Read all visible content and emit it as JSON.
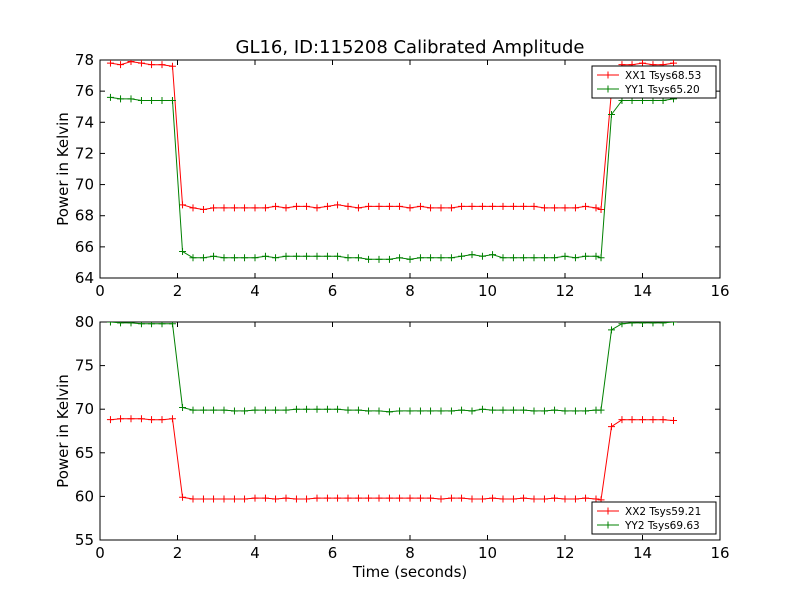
{
  "title": "GL16, ID:115208 Calibrated Amplitude",
  "colors": {
    "red": "#ff0000",
    "green": "#008000"
  },
  "chart_data": [
    {
      "type": "line",
      "xlabel": "",
      "ylabel": "Power in Kelvin",
      "xlim": [
        0,
        16
      ],
      "ylim": [
        64,
        78
      ],
      "xticks": [
        "0",
        "2",
        "4",
        "6",
        "8",
        "10",
        "12",
        "14",
        "16"
      ],
      "yticks": [
        "64",
        "66",
        "68",
        "70",
        "72",
        "74",
        "76",
        "78"
      ],
      "grid": false,
      "legend_position": "top-right",
      "x": [
        0.27,
        0.53,
        0.8,
        1.07,
        1.33,
        1.6,
        1.87,
        2.13,
        2.4,
        2.67,
        2.93,
        3.2,
        3.47,
        3.73,
        4.0,
        4.27,
        4.53,
        4.8,
        5.07,
        5.33,
        5.6,
        5.87,
        6.13,
        6.4,
        6.67,
        6.93,
        7.2,
        7.47,
        7.73,
        8.0,
        8.27,
        8.53,
        8.8,
        9.07,
        9.33,
        9.6,
        9.87,
        10.13,
        10.4,
        10.67,
        10.93,
        11.2,
        11.47,
        11.73,
        12.0,
        12.27,
        12.53,
        12.8,
        12.93,
        13.2,
        13.47,
        13.73,
        14.0,
        14.27,
        14.53,
        14.8
      ],
      "series": [
        {
          "name": "XX1 Tsys68.53",
          "color": "#ff0000",
          "values": [
            77.8,
            77.7,
            77.9,
            77.8,
            77.7,
            77.7,
            77.6,
            68.7,
            68.5,
            68.4,
            68.5,
            68.5,
            68.5,
            68.5,
            68.5,
            68.5,
            68.6,
            68.5,
            68.6,
            68.6,
            68.5,
            68.6,
            68.7,
            68.6,
            68.5,
            68.6,
            68.6,
            68.6,
            68.6,
            68.5,
            68.6,
            68.5,
            68.5,
            68.5,
            68.6,
            68.6,
            68.6,
            68.6,
            68.6,
            68.6,
            68.6,
            68.6,
            68.5,
            68.5,
            68.5,
            68.5,
            68.6,
            68.5,
            68.4,
            76.0,
            77.7,
            77.7,
            77.8,
            77.7,
            77.7,
            77.8
          ]
        },
        {
          "name": "YY1 Tsys65.20",
          "color": "#008000",
          "values": [
            75.6,
            75.5,
            75.5,
            75.4,
            75.4,
            75.4,
            75.4,
            65.7,
            65.3,
            65.3,
            65.4,
            65.3,
            65.3,
            65.3,
            65.3,
            65.4,
            65.3,
            65.4,
            65.4,
            65.4,
            65.4,
            65.4,
            65.4,
            65.3,
            65.3,
            65.2,
            65.2,
            65.2,
            65.3,
            65.2,
            65.3,
            65.3,
            65.3,
            65.3,
            65.4,
            65.5,
            65.4,
            65.5,
            65.3,
            65.3,
            65.3,
            65.3,
            65.3,
            65.3,
            65.4,
            65.3,
            65.4,
            65.4,
            65.3,
            74.5,
            75.4,
            75.4,
            75.4,
            75.4,
            75.4,
            75.5
          ]
        }
      ]
    },
    {
      "type": "line",
      "xlabel": "Time (seconds)",
      "ylabel": "Power in Kelvin",
      "xlim": [
        0,
        16
      ],
      "ylim": [
        55,
        80
      ],
      "xticks": [
        "0",
        "2",
        "4",
        "6",
        "8",
        "10",
        "12",
        "14",
        "16"
      ],
      "yticks": [
        "55",
        "60",
        "65",
        "70",
        "75",
        "80"
      ],
      "grid": false,
      "legend_position": "bottom-right",
      "x": [
        0.27,
        0.53,
        0.8,
        1.07,
        1.33,
        1.6,
        1.87,
        2.13,
        2.4,
        2.67,
        2.93,
        3.2,
        3.47,
        3.73,
        4.0,
        4.27,
        4.53,
        4.8,
        5.07,
        5.33,
        5.6,
        5.87,
        6.13,
        6.4,
        6.67,
        6.93,
        7.2,
        7.47,
        7.73,
        8.0,
        8.27,
        8.53,
        8.8,
        9.07,
        9.33,
        9.6,
        9.87,
        10.13,
        10.4,
        10.67,
        10.93,
        11.2,
        11.47,
        11.73,
        12.0,
        12.27,
        12.53,
        12.8,
        12.93,
        13.2,
        13.47,
        13.73,
        14.0,
        14.27,
        14.53,
        14.8
      ],
      "series": [
        {
          "name": "XX2 Tsys59.21",
          "color": "#ff0000",
          "values": [
            68.8,
            68.9,
            68.9,
            68.9,
            68.8,
            68.8,
            68.9,
            59.9,
            59.7,
            59.7,
            59.7,
            59.7,
            59.7,
            59.7,
            59.8,
            59.8,
            59.7,
            59.8,
            59.7,
            59.7,
            59.8,
            59.8,
            59.8,
            59.8,
            59.8,
            59.8,
            59.8,
            59.8,
            59.8,
            59.8,
            59.8,
            59.8,
            59.7,
            59.8,
            59.8,
            59.7,
            59.7,
            59.8,
            59.7,
            59.7,
            59.8,
            59.7,
            59.7,
            59.8,
            59.7,
            59.7,
            59.8,
            59.7,
            59.6,
            68.0,
            68.8,
            68.8,
            68.8,
            68.8,
            68.8,
            68.7
          ]
        },
        {
          "name": "YY2 Tsys69.63",
          "color": "#008000",
          "values": [
            80.0,
            79.9,
            79.9,
            79.8,
            79.8,
            79.8,
            79.8,
            70.2,
            69.9,
            69.9,
            69.9,
            69.9,
            69.8,
            69.8,
            69.9,
            69.9,
            69.9,
            69.9,
            70.0,
            70.0,
            70.0,
            70.0,
            70.0,
            69.9,
            69.9,
            69.8,
            69.8,
            69.7,
            69.8,
            69.8,
            69.8,
            69.8,
            69.8,
            69.8,
            69.9,
            69.8,
            70.0,
            69.9,
            69.9,
            69.9,
            69.9,
            69.8,
            69.8,
            69.9,
            69.8,
            69.8,
            69.8,
            69.9,
            69.9,
            79.1,
            79.8,
            79.9,
            79.9,
            79.9,
            79.9,
            80.0
          ]
        }
      ]
    }
  ]
}
